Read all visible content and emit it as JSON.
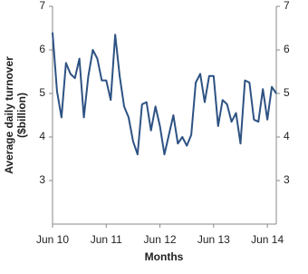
{
  "chart_data": {
    "type": "line",
    "ylabel": [
      "Average daily turnover",
      "($billion)"
    ],
    "xlabel": "Months",
    "categories": [
      "Jun 10",
      null,
      null,
      null,
      null,
      null,
      null,
      null,
      null,
      null,
      null,
      null,
      "Jun 11",
      null,
      null,
      null,
      null,
      null,
      null,
      null,
      null,
      null,
      null,
      null,
      "Jun 12",
      null,
      null,
      null,
      null,
      null,
      null,
      null,
      null,
      null,
      null,
      null,
      "Jun 13",
      null,
      null,
      null,
      null,
      null,
      null,
      null,
      null,
      null,
      null,
      null,
      "Jun 14",
      null,
      null
    ],
    "series": [
      {
        "color": "#2d5283",
        "values": [
          6.4,
          5.05,
          4.45,
          5.7,
          5.45,
          5.35,
          5.8,
          4.45,
          5.4,
          6.0,
          5.8,
          5.3,
          5.3,
          4.85,
          6.35,
          5.4,
          4.7,
          4.45,
          3.9,
          3.6,
          4.75,
          4.8,
          4.15,
          4.7,
          4.25,
          3.6,
          4.05,
          4.5,
          3.85,
          4.0,
          3.8,
          4.05,
          5.25,
          5.45,
          4.8,
          5.4,
          5.4,
          4.25,
          4.85,
          4.75,
          4.35,
          4.55,
          3.85,
          5.3,
          5.25,
          4.4,
          4.35,
          5.1,
          4.4,
          5.15,
          5.0
        ]
      }
    ],
    "ylim": [
      2,
      7
    ],
    "yticks": [
      3,
      4,
      5,
      6,
      7
    ],
    "y2lim": [
      2,
      7
    ],
    "y2ticks": [
      3,
      4,
      5,
      6,
      7
    ],
    "grid": false
  }
}
